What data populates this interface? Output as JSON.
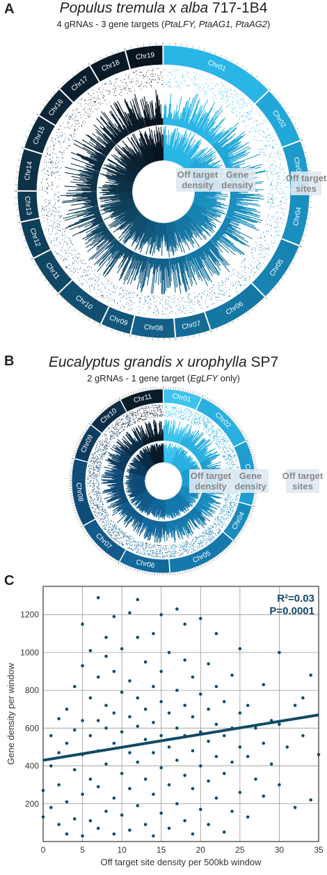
{
  "panel_a": {
    "label": "A",
    "title_italic": "Populus tremula x alba",
    "title_plain": " 717-1B4",
    "subtitle_plain": "4 gRNAs - 3 gene targets  (",
    "subtitle_italic": "PtaLFY, PtaAG1, PtaAG2",
    "subtitle_end": ")",
    "track_labels": {
      "off_target_density": "Off target density",
      "gene_density": "Gene density",
      "off_target_sites": "Off target sites"
    },
    "chromosomes": [
      "Chr01",
      "Chr02",
      "Chr03",
      "Chr04",
      "Chr05",
      "Chr06",
      "Chr07",
      "Chr08",
      "Chr09",
      "Chr10",
      "Chr11",
      "Chr12",
      "Chr13",
      "Chr14",
      "Chr15",
      "Chr16",
      "Chr17",
      "Chr18",
      "Chr19"
    ],
    "colors": [
      "#29b6e6",
      "#22a8d8",
      "#1e9bcb",
      "#1a8fbf",
      "#1683b2",
      "#1577a4",
      "#146b96",
      "#135f88",
      "#12567b",
      "#114e70",
      "#104765",
      "#0f405b",
      "#0e3951",
      "#0d3248",
      "#0c2b3f",
      "#0b2536",
      "#0a1f2e",
      "#091a27",
      "#081520"
    ],
    "sizes_mb": [
      50,
      25,
      21,
      24,
      26,
      27,
      15,
      19,
      13,
      22,
      18,
      16,
      13,
      18,
      15,
      14,
      16,
      16,
      16
    ]
  },
  "panel_b": {
    "label": "B",
    "title_italic": "Eucalyptus grandis x urophylla",
    "title_plain": " SP7",
    "subtitle_plain": "2 gRNAs - 1 gene target (",
    "subtitle_italic": "EgLFY",
    "subtitle_end": " only)",
    "track_labels": {
      "off_target_density": "Off target density",
      "gene_density": "Gene density",
      "off_target_sites": "Off target sites"
    },
    "chromosomes": [
      "Chr01",
      "Chr02",
      "Chr03",
      "Chr04",
      "Chr05",
      "Chr06",
      "Chr07",
      "Chr08",
      "Chr09",
      "Chr10",
      "Chr11"
    ],
    "colors": [
      "#3cc3ee",
      "#29b0e0",
      "#1f9dcf",
      "#1a8bbe",
      "#1679ac",
      "#14689a",
      "#125a89",
      "#104c78",
      "#0d3c5f",
      "#0b2e48",
      "#091c2a"
    ],
    "sizes_mb": [
      40,
      64,
      67,
      40,
      74,
      53,
      52,
      70,
      38,
      39,
      45
    ]
  },
  "panel_c": {
    "label": "C",
    "stats": {
      "r2": "R²=0.03",
      "p": "P=0.0001"
    },
    "chart_data": {
      "type": "scatter",
      "xlabel": "Off target site density per 500kb window",
      "ylabel": "Gene density per window",
      "xlim": [
        0,
        35
      ],
      "ylim": [
        0,
        1350
      ],
      "xticks": [
        0,
        5,
        10,
        15,
        20,
        25,
        30,
        35
      ],
      "yticks": [
        200,
        400,
        600,
        800,
        1000,
        1200
      ],
      "grid": true,
      "trend_line": {
        "x": [
          0,
          35
        ],
        "y": [
          430,
          670
        ]
      },
      "points": [
        [
          0,
          270
        ],
        [
          0,
          130
        ],
        [
          1,
          560
        ],
        [
          1,
          400
        ],
        [
          1,
          180
        ],
        [
          2,
          90
        ],
        [
          2,
          650
        ],
        [
          2,
          470
        ],
        [
          2,
          300
        ],
        [
          3,
          210
        ],
        [
          3,
          40
        ],
        [
          3,
          520
        ],
        [
          3,
          700
        ],
        [
          4,
          120
        ],
        [
          4,
          380
        ],
        [
          4,
          590
        ],
        [
          4,
          820
        ],
        [
          5,
          1150
        ],
        [
          5,
          30
        ],
        [
          5,
          250
        ],
        [
          5,
          460
        ],
        [
          5,
          640
        ],
        [
          5,
          930
        ],
        [
          6,
          110
        ],
        [
          6,
          330
        ],
        [
          6,
          560
        ],
        [
          6,
          760
        ],
        [
          6,
          1010
        ],
        [
          7,
          70
        ],
        [
          7,
          290
        ],
        [
          7,
          480
        ],
        [
          7,
          1290
        ],
        [
          7,
          870
        ],
        [
          7,
          640
        ],
        [
          8,
          160
        ],
        [
          8,
          410
        ],
        [
          8,
          600
        ],
        [
          8,
          720
        ],
        [
          8,
          980
        ],
        [
          8,
          1080
        ],
        [
          9,
          40
        ],
        [
          9,
          230
        ],
        [
          9,
          520
        ],
        [
          9,
          680
        ],
        [
          9,
          900
        ],
        [
          9,
          1190
        ],
        [
          10,
          140
        ],
        [
          10,
          360
        ],
        [
          10,
          580
        ],
        [
          10,
          790
        ],
        [
          10,
          1020
        ],
        [
          11,
          60
        ],
        [
          11,
          280
        ],
        [
          11,
          470
        ],
        [
          11,
          660
        ],
        [
          11,
          850
        ],
        [
          11,
          1210
        ],
        [
          12,
          190
        ],
        [
          12,
          420
        ],
        [
          12,
          610
        ],
        [
          12,
          760
        ],
        [
          12,
          1080
        ],
        [
          12,
          1280
        ],
        [
          13,
          90
        ],
        [
          13,
          330
        ],
        [
          13,
          540
        ],
        [
          13,
          700
        ],
        [
          13,
          950
        ],
        [
          14,
          30
        ],
        [
          14,
          250
        ],
        [
          14,
          470
        ],
        [
          14,
          630
        ],
        [
          14,
          820
        ],
        [
          14,
          1100
        ],
        [
          15,
          150
        ],
        [
          15,
          390
        ],
        [
          15,
          560
        ],
        [
          15,
          740
        ],
        [
          15,
          900
        ],
        [
          15,
          1200
        ],
        [
          16,
          70
        ],
        [
          16,
          300
        ],
        [
          16,
          500
        ],
        [
          16,
          680
        ],
        [
          16,
          1000
        ],
        [
          17,
          200
        ],
        [
          17,
          430
        ],
        [
          17,
          600
        ],
        [
          17,
          800
        ],
        [
          17,
          1230
        ],
        [
          18,
          110
        ],
        [
          18,
          350
        ],
        [
          18,
          560
        ],
        [
          18,
          720
        ],
        [
          18,
          960
        ],
        [
          18,
          1150
        ],
        [
          19,
          40
        ],
        [
          19,
          280
        ],
        [
          19,
          480
        ],
        [
          19,
          660
        ],
        [
          19,
          870
        ],
        [
          20,
          170
        ],
        [
          20,
          400
        ],
        [
          20,
          580
        ],
        [
          20,
          780
        ],
        [
          20,
          1180
        ],
        [
          21,
          90
        ],
        [
          21,
          320
        ],
        [
          21,
          530
        ],
        [
          21,
          700
        ],
        [
          21,
          940
        ],
        [
          22,
          230
        ],
        [
          22,
          450
        ],
        [
          22,
          620
        ],
        [
          22,
          820
        ],
        [
          22,
          1100
        ],
        [
          23,
          50
        ],
        [
          23,
          360
        ],
        [
          23,
          560
        ],
        [
          23,
          740
        ],
        [
          24,
          160
        ],
        [
          24,
          420
        ],
        [
          24,
          600
        ],
        [
          24,
          880
        ],
        [
          25,
          260
        ],
        [
          25,
          500
        ],
        [
          25,
          680
        ],
        [
          25,
          1020
        ],
        [
          26,
          130
        ],
        [
          26,
          450
        ],
        [
          26,
          720
        ],
        [
          27,
          330
        ],
        [
          27,
          600
        ],
        [
          28,
          240
        ],
        [
          28,
          520
        ],
        [
          28,
          830
        ],
        [
          29,
          410
        ],
        [
          29,
          640
        ],
        [
          30,
          300
        ],
        [
          30,
          620
        ],
        [
          30,
          1000
        ],
        [
          31,
          500
        ],
        [
          32,
          180
        ],
        [
          32,
          720
        ],
        [
          33,
          560
        ],
        [
          33,
          760
        ],
        [
          34,
          220
        ],
        [
          34,
          880
        ],
        [
          35,
          460
        ]
      ]
    }
  }
}
